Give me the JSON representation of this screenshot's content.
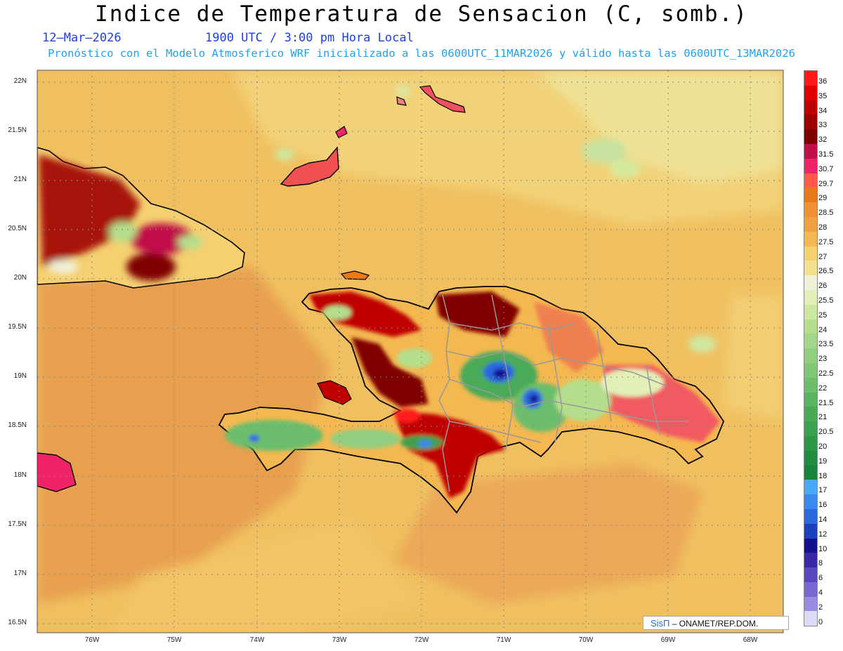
{
  "header": {
    "title": "Indice de Temperatura de Sensacion (C, somb.)",
    "date": "12–Mar–2026",
    "time": "1900 UTC / 3:00 pm Hora Local",
    "info": "Pronóstico con el Modelo Atmosferico WRF inicializado a las 0600UTC_11MAR2026 y válido hasta las  0600UTC_13MAR2026"
  },
  "axes": {
    "lat_labels": [
      "22N",
      "21.5N",
      "21N",
      "20.5N",
      "20N",
      "19.5N",
      "19N",
      "18.5N",
      "18N",
      "17.5N",
      "17N",
      "16.5N"
    ],
    "lon_labels": [
      "76W",
      "75W",
      "74W",
      "73W",
      "72W",
      "71W",
      "70W",
      "69W",
      "68W"
    ]
  },
  "legend": {
    "levels": [
      "36",
      "35",
      "34",
      "33",
      "32",
      "31.5",
      "30.7",
      "29.7",
      "29",
      "28.5",
      "28",
      "27.5",
      "27",
      "26.5",
      "26",
      "25.5",
      "25",
      "24",
      "23.5",
      "23",
      "22.5",
      "22",
      "21.5",
      "21",
      "20.5",
      "20",
      "19",
      "18",
      "17",
      "16",
      "14",
      "12",
      "10",
      "8",
      "6",
      "4",
      "2",
      "0"
    ],
    "colors": [
      "#ff1a1a",
      "#e00000",
      "#c00000",
      "#9e0000",
      "#800000",
      "#c0104a",
      "#f0226a",
      "#ff5a4a",
      "#e87818",
      "#f09030",
      "#f0a040",
      "#f4b850",
      "#f4d070",
      "#f4e090",
      "#f0f0d8",
      "#e2f0b8",
      "#cce8a0",
      "#b4de8c",
      "#a2d688",
      "#92ce80",
      "#80c878",
      "#6cbe6c",
      "#58b460",
      "#48aa58",
      "#3ca050",
      "#2e9648",
      "#208c40",
      "#18843a",
      "#4aa8f8",
      "#3a88f0",
      "#2a68e0",
      "#1a40c0",
      "#141090",
      "#3828a8",
      "#5848c0",
      "#7868d0",
      "#9a8ae0",
      "#dcdcf8"
    ]
  },
  "credit": {
    "brand": "SisΠ",
    "text": " – ONAMET/REP.DOM."
  }
}
